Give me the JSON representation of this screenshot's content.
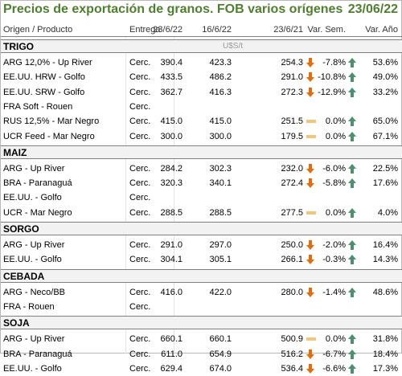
{
  "title": "Precios de exportación de granos. FOB varios orígenes",
  "date": "23/06/22",
  "headers": {
    "product": "Origen / Producto",
    "delivery": "Entrega",
    "p1": "23/6/22",
    "p2": "16/6/22",
    "p3": "23/6/21",
    "var_week": "Var. Sem.",
    "var_year": "Var. Año"
  },
  "unit": "U$S/t",
  "colors": {
    "title": "#4e7f2f",
    "arrow_down": "#e46c0a",
    "arrow_up": "#4e8f6f",
    "dash": "#f2c57c"
  },
  "groups": [
    {
      "name": "TRIGO",
      "rows": [
        {
          "name": "ARG 12,0% - Up River",
          "delivery": "Cerc.",
          "p1": "390.4",
          "p2": "423.3",
          "p3": "254.3",
          "i1": "down",
          "vs": "-7.8%",
          "i2": "up",
          "va": "53.6%"
        },
        {
          "name": "EE.UU. HRW - Golfo",
          "delivery": "Cerc.",
          "p1": "433.5",
          "p2": "486.2",
          "p3": "291.0",
          "i1": "down",
          "vs": "-10.8%",
          "i2": "up",
          "va": "49.0%"
        },
        {
          "name": "EE.UU. SRW - Golfo",
          "delivery": "Cerc.",
          "p1": "362.7",
          "p2": "416.3",
          "p3": "272.3",
          "i1": "down",
          "vs": "-12.9%",
          "i2": "up",
          "va": "33.2%"
        },
        {
          "name": "FRA Soft - Rouen",
          "delivery": "Cerc.",
          "p1": "",
          "p2": "",
          "p3": "",
          "i1": "",
          "vs": "",
          "i2": "",
          "va": ""
        },
        {
          "name": "RUS 12,5% - Mar Negro",
          "delivery": "Cerc.",
          "p1": "415.0",
          "p2": "415.0",
          "p3": "251.5",
          "i1": "dash",
          "vs": "0.0%",
          "i2": "up",
          "va": "65.0%"
        },
        {
          "name": "UCR Feed - Mar Negro",
          "delivery": "Cerc.",
          "p1": "300.0",
          "p2": "300.0",
          "p3": "179.5",
          "i1": "dash",
          "vs": "0.0%",
          "i2": "up",
          "va": "67.1%"
        }
      ]
    },
    {
      "name": "MAIZ",
      "rows": [
        {
          "name": "ARG - Up River",
          "delivery": "Cerc.",
          "p1": "284.2",
          "p2": "302.3",
          "p3": "232.0",
          "i1": "down",
          "vs": "-6.0%",
          "i2": "up",
          "va": "22.5%"
        },
        {
          "name": "BRA - Paranaguá",
          "delivery": "Cerc.",
          "p1": "320.3",
          "p2": "340.1",
          "p3": "272.4",
          "i1": "down",
          "vs": "-5.8%",
          "i2": "up",
          "va": "17.6%"
        },
        {
          "name": "EE.UU. - Golfo",
          "delivery": "Cerc.",
          "p1": "",
          "p2": "",
          "p3": "",
          "i1": "",
          "vs": "",
          "i2": "",
          "va": ""
        },
        {
          "name": "UCR - Mar Negro",
          "delivery": "Cerc.",
          "p1": "288.5",
          "p2": "288.5",
          "p3": "277.5",
          "i1": "dash",
          "vs": "0.0%",
          "i2": "up",
          "va": "4.0%"
        }
      ]
    },
    {
      "name": "SORGO",
      "rows": [
        {
          "name": "ARG - Up River",
          "delivery": "Cerc.",
          "p1": "291.0",
          "p2": "297.0",
          "p3": "250.0",
          "i1": "down",
          "vs": "-2.0%",
          "i2": "up",
          "va": "16.4%"
        },
        {
          "name": "EE.UU. - Golfo",
          "delivery": "Cerc.",
          "p1": "304.1",
          "p2": "305.1",
          "p3": "266.1",
          "i1": "down",
          "vs": "-0.3%",
          "i2": "up",
          "va": "14.3%"
        }
      ]
    },
    {
      "name": "CEBADA",
      "rows": [
        {
          "name": "ARG - Neco/BB",
          "delivery": "Cerc.",
          "p1": "416.0",
          "p2": "422.0",
          "p3": "280.0",
          "i1": "down",
          "vs": "-1.4%",
          "i2": "up",
          "va": "48.6%"
        },
        {
          "name": "FRA - Rouen",
          "delivery": "Cerc.",
          "p1": "",
          "p2": "",
          "p3": "",
          "i1": "",
          "vs": "",
          "i2": "",
          "va": ""
        }
      ]
    },
    {
      "name": "SOJA",
      "rows": [
        {
          "name": "ARG - Up River",
          "delivery": "Cerc.",
          "p1": "660.1",
          "p2": "660.1",
          "p3": "500.9",
          "i1": "dash",
          "vs": "0.0%",
          "i2": "up",
          "va": "31.8%"
        },
        {
          "name": "BRA - Paranaguá",
          "delivery": "Cerc.",
          "p1": "611.0",
          "p2": "654.9",
          "p3": "516.2",
          "i1": "down",
          "vs": "-6.7%",
          "i2": "up",
          "va": "18.4%"
        },
        {
          "name": "EE.UU. - Golfo",
          "delivery": "Cerc.",
          "p1": "629.4",
          "p2": "674.0",
          "p3": "536.4",
          "i1": "down",
          "vs": "-6.6%",
          "i2": "up",
          "va": "17.3%"
        }
      ]
    }
  ]
}
